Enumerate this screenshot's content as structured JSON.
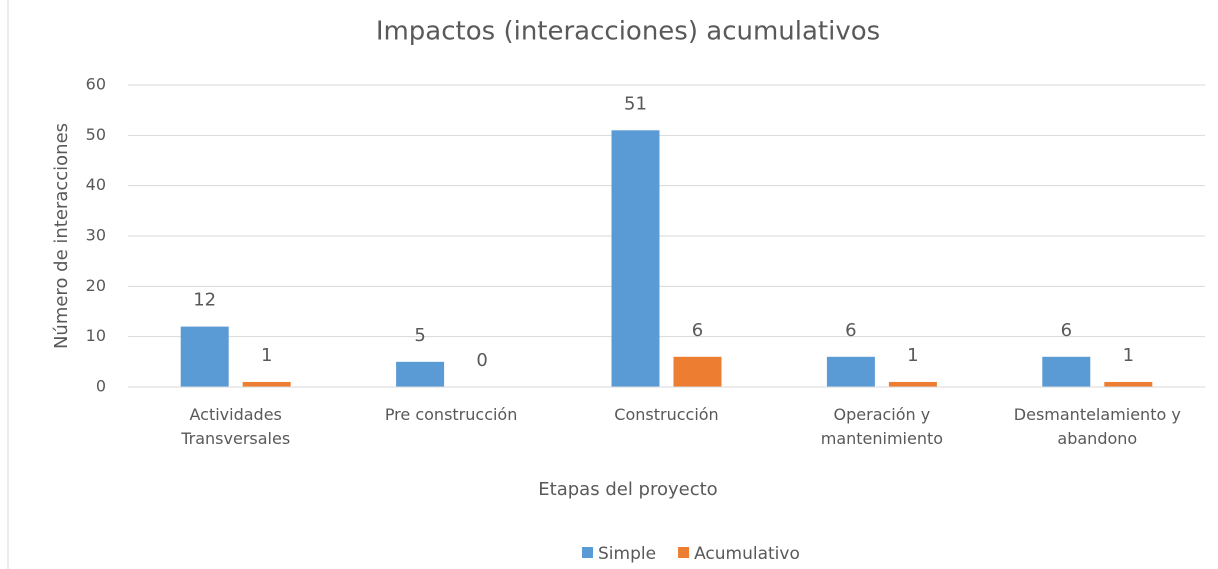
{
  "chart_data": {
    "type": "bar",
    "title": "Impactos (interacciones) acumulativos",
    "x_label": "Etapas del proyecto",
    "y_label": "Número de interacciones",
    "categories": [
      "Actividades Transversales",
      "Pre construcción",
      "Construcción",
      "Operación y mantenimiento",
      "Desmantelamiento y abandono"
    ],
    "series": [
      {
        "name": "Simple",
        "color": "#5b9bd5",
        "values": [
          12,
          5,
          51,
          6,
          6
        ]
      },
      {
        "name": "Acumulativo",
        "color": "#ed7d31",
        "values": [
          1,
          0,
          6,
          1,
          1
        ]
      }
    ],
    "ylim": [
      0,
      60
    ],
    "yticks": [
      0,
      10,
      20,
      30,
      40,
      50,
      60
    ],
    "grid": true,
    "legend": "bottom"
  }
}
